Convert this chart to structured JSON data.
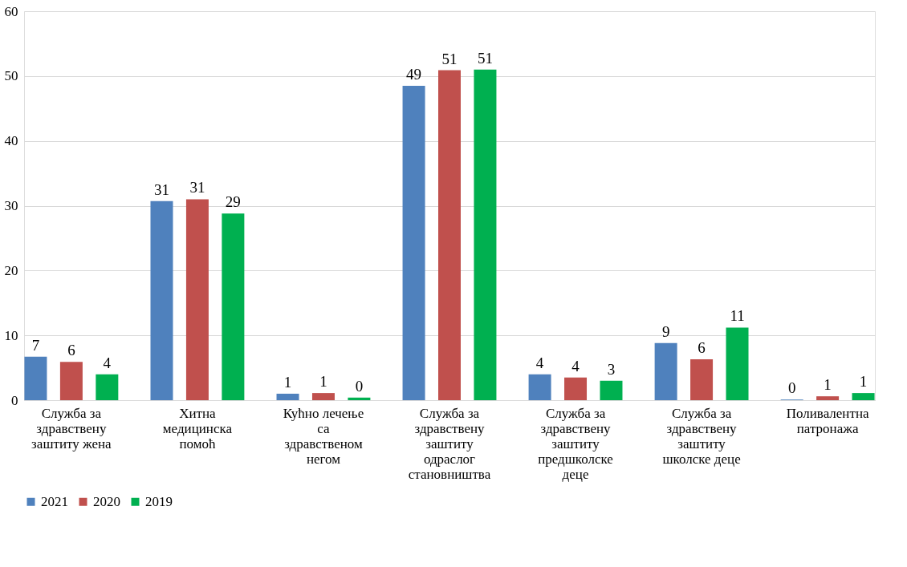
{
  "chart_data": {
    "type": "bar",
    "categories": [
      "Служба за здравствену заштиту жена",
      "Хитна медицинска помоћ",
      "Кућно лечење са здравственом негом",
      "Служба за здравствену заштиту одраслог становништва",
      "Служба за здравствену заштиту предшколске деце",
      "Служба за здравствену заштиту школске деце",
      "Поливалентна патронажа"
    ],
    "series": [
      {
        "name": "2021",
        "color": "#4f81bd",
        "values": [
          6.7,
          30.7,
          1.0,
          48.5,
          4.0,
          8.8,
          0.1
        ],
        "value_labels": [
          "7",
          "31",
          "1",
          "49",
          "4",
          "9",
          "0"
        ]
      },
      {
        "name": "2020",
        "color": "#c0504d",
        "values": [
          5.9,
          31.0,
          1.1,
          50.9,
          3.5,
          6.3,
          0.6
        ],
        "value_labels": [
          "6",
          "31",
          "1",
          "51",
          "4",
          "6",
          "1"
        ]
      },
      {
        "name": "2019",
        "color": "#00b050",
        "values": [
          4.0,
          28.8,
          0.4,
          51.0,
          3.0,
          11.2,
          1.1
        ],
        "value_labels": [
          "4",
          "29",
          "0",
          "51",
          "3",
          "11",
          "1"
        ]
      }
    ],
    "ylim": [
      0,
      60
    ],
    "yticks": [
      0,
      10,
      20,
      30,
      40,
      50,
      60
    ],
    "grid": "y",
    "legend": "bottom"
  }
}
